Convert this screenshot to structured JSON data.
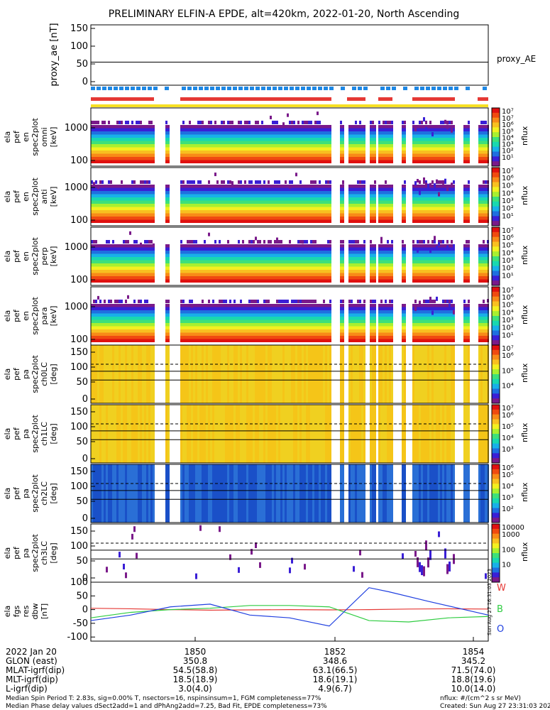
{
  "title": "PRELIMINARY ELFIN-A EPDE, alt=420km, 2022-01-20, North Ascending",
  "colors": {
    "spec": [
      "#7a1a8a",
      "#3a1fd6",
      "#1f6fe0",
      "#18b0e8",
      "#19d8b0",
      "#3ee07a",
      "#a8f030",
      "#f3f020",
      "#f8c020",
      "#f88a18",
      "#f04a10",
      "#e01010"
    ],
    "blue_bar": "#1e88e5",
    "red_bar": "#e53935",
    "yellow_bar": "#f7e023",
    "pitch_fill": "#f5c518",
    "pitch_blue": "#2a6fd6",
    "mag_red": "#e53935",
    "mag_green": "#2ecc40",
    "mag_blue": "#1f3fe0"
  },
  "chart_data": [
    {
      "panel": "proxy_ae",
      "type": "line",
      "ylabel": "proxy_ae [nT]",
      "yticks": [
        "150",
        "100",
        "50",
        "0"
      ],
      "ylim": [
        -10,
        160
      ],
      "series": [
        {
          "name": "proxy_AE",
          "x": [
            0,
            100
          ],
          "values": [
            55,
            55
          ]
        }
      ]
    },
    {
      "panel": "pef_en_spec2plot_omni",
      "type": "heatmap",
      "ylabel": [
        "ela",
        "pef",
        "en",
        "spec2plot",
        "omni",
        "[keV]"
      ],
      "yticks": [
        "1000",
        "100"
      ],
      "zlabel": "nflux",
      "ztop": "10⁷",
      "zticks": [
        "10⁷",
        "10⁶",
        "10⁵",
        "10⁴",
        "10³",
        "10²",
        "10¹"
      ]
    },
    {
      "panel": "pef_en_spec2plot_anti",
      "type": "heatmap",
      "ylabel": [
        "ela",
        "pef",
        "en",
        "spec2plot",
        "anti",
        "[keV]"
      ],
      "yticks": [
        "1000",
        "100"
      ],
      "zlabel": "nflux",
      "ztop": "10⁷",
      "zticks": [
        "10⁶",
        "10⁵",
        "10⁴",
        "10³",
        "10²",
        "10¹"
      ]
    },
    {
      "panel": "pef_en_spec2plot_perp",
      "type": "heatmap",
      "ylabel": [
        "ela",
        "pef",
        "en",
        "spec2plot",
        "perp",
        "[keV]"
      ],
      "yticks": [
        "1000",
        "100"
      ],
      "zlabel": "nflux",
      "ztop": "10⁷",
      "zticks": [
        "10⁶",
        "10⁵",
        "10⁴",
        "10³",
        "10²",
        "10¹"
      ]
    },
    {
      "panel": "pef_en_spec2plot_para",
      "type": "heatmap",
      "ylabel": [
        "ela",
        "pef",
        "en",
        "spec2plot",
        "para",
        "[keV]"
      ],
      "yticks": [
        "1000",
        "100"
      ],
      "zlabel": "nflux",
      "ztop": "10⁷",
      "zticks": [
        "10⁶",
        "10⁵",
        "10⁴",
        "10³",
        "10²",
        "10¹"
      ]
    },
    {
      "panel": "pef_pa_spec2plot_ch0LC",
      "type": "heatmap",
      "ylabel": [
        "ela",
        "pef",
        "pa",
        "spec2plot",
        "ch0LC",
        "[deg]"
      ],
      "yticks": [
        "150",
        "100",
        "50",
        "0"
      ],
      "zlabel": "nflux",
      "ztop": "10⁷",
      "zticks": [
        "10⁶",
        "10⁵",
        "10⁴"
      ]
    },
    {
      "panel": "pef_pa_spec2plot_ch1LC",
      "type": "heatmap",
      "ylabel": [
        "ela",
        "pef",
        "pa",
        "spec2plot",
        "ch1LC",
        "[deg]"
      ],
      "yticks": [
        "150",
        "100",
        "50",
        "0"
      ],
      "zlabel": "nflux",
      "ztop": "10⁷",
      "zticks": [
        "10⁶",
        "10⁵",
        "10⁴",
        "10³"
      ]
    },
    {
      "panel": "pef_pa_spec2plot_ch2LC",
      "type": "heatmap",
      "ylabel": [
        "ela",
        "pef",
        "pa",
        "spec2plot",
        "ch2LC",
        "[deg]"
      ],
      "yticks": [
        "150",
        "100",
        "50",
        "0"
      ],
      "zlabel": "nflux",
      "ztop": "10⁶",
      "zticks": [
        "10⁵",
        "10⁴",
        "10³",
        "10²"
      ]
    },
    {
      "panel": "pef_pa_spec2plot_ch3LC",
      "type": "heatmap",
      "ylabel": [
        "ela",
        "pef",
        "pa",
        "spec2plot",
        "ch3LC",
        "[deg]"
      ],
      "yticks": [
        "150",
        "100",
        "50",
        "0"
      ],
      "zlabel": "nflux",
      "ztop": "10000",
      "zticks": [
        "1000",
        "100",
        "10"
      ]
    },
    {
      "panel": "fgs_res_dbw",
      "type": "line",
      "ylabel": [
        "ela",
        "fgs",
        "res",
        "dbw",
        "[nT]"
      ],
      "yticks": [
        "100",
        "50",
        "0",
        "-50",
        "-100"
      ],
      "ylim": [
        -115,
        100
      ],
      "legend": [
        "W",
        "B",
        "O"
      ],
      "series": [
        {
          "name": "W",
          "x": [
            0,
            10,
            20,
            30,
            40,
            50,
            60,
            70,
            80,
            90,
            100
          ],
          "values": [
            5,
            3,
            0,
            -2,
            -1,
            0,
            -1,
            0,
            2,
            3,
            2
          ]
        },
        {
          "name": "B",
          "x": [
            0,
            10,
            20,
            30,
            40,
            50,
            60,
            70,
            80,
            90,
            100
          ],
          "values": [
            -30,
            -10,
            0,
            5,
            15,
            15,
            10,
            -40,
            -45,
            -30,
            -25
          ]
        },
        {
          "name": "O",
          "x": [
            0,
            10,
            20,
            30,
            40,
            50,
            60,
            70,
            75,
            85,
            100
          ],
          "values": [
            -40,
            -20,
            10,
            20,
            -20,
            -30,
            -60,
            80,
            65,
            30,
            -20
          ]
        }
      ]
    }
  ],
  "xaxis": {
    "ticks": [
      "1850",
      "1852",
      "1854"
    ],
    "rows": [
      {
        "label": "2022 Jan 20",
        "values": [
          "1850",
          "1852",
          "1854"
        ]
      },
      {
        "label": "GLON (east)",
        "values": [
          "350.8",
          "348.6",
          "345.2"
        ]
      },
      {
        "label": "MLAT-igrf(dip)",
        "values": [
          "54.5(58.8)",
          "63.1(66.5)",
          "71.5(74.0)"
        ]
      },
      {
        "label": "MLT-igrf(dip)",
        "values": [
          "18.5(18.9)",
          "18.6(19.1)",
          "18.8(19.6)"
        ]
      },
      {
        "label": "L-igrf(dip)",
        "values": [
          "3.0(4.0)",
          "4.9(6.7)",
          "10.0(14.0)"
        ]
      }
    ]
  },
  "footer": {
    "left1": "Median Spin Period T: 2.83s, sig=0.00% T, nsectors=16, nspinsinsum=1, FGM completeness=77%",
    "left2": "Median Phase delay values dSect2add=1 and dPhAng2add=7.25, Bad Fit, EPDE completeness=73%",
    "right1": "nflux: #/(cm^2 s sr MeV)",
    "right2": "Created: Sun Aug 27 23:31:03 2023",
    "side_stamp": "Sun Aug 27 16:31:03 2023"
  }
}
